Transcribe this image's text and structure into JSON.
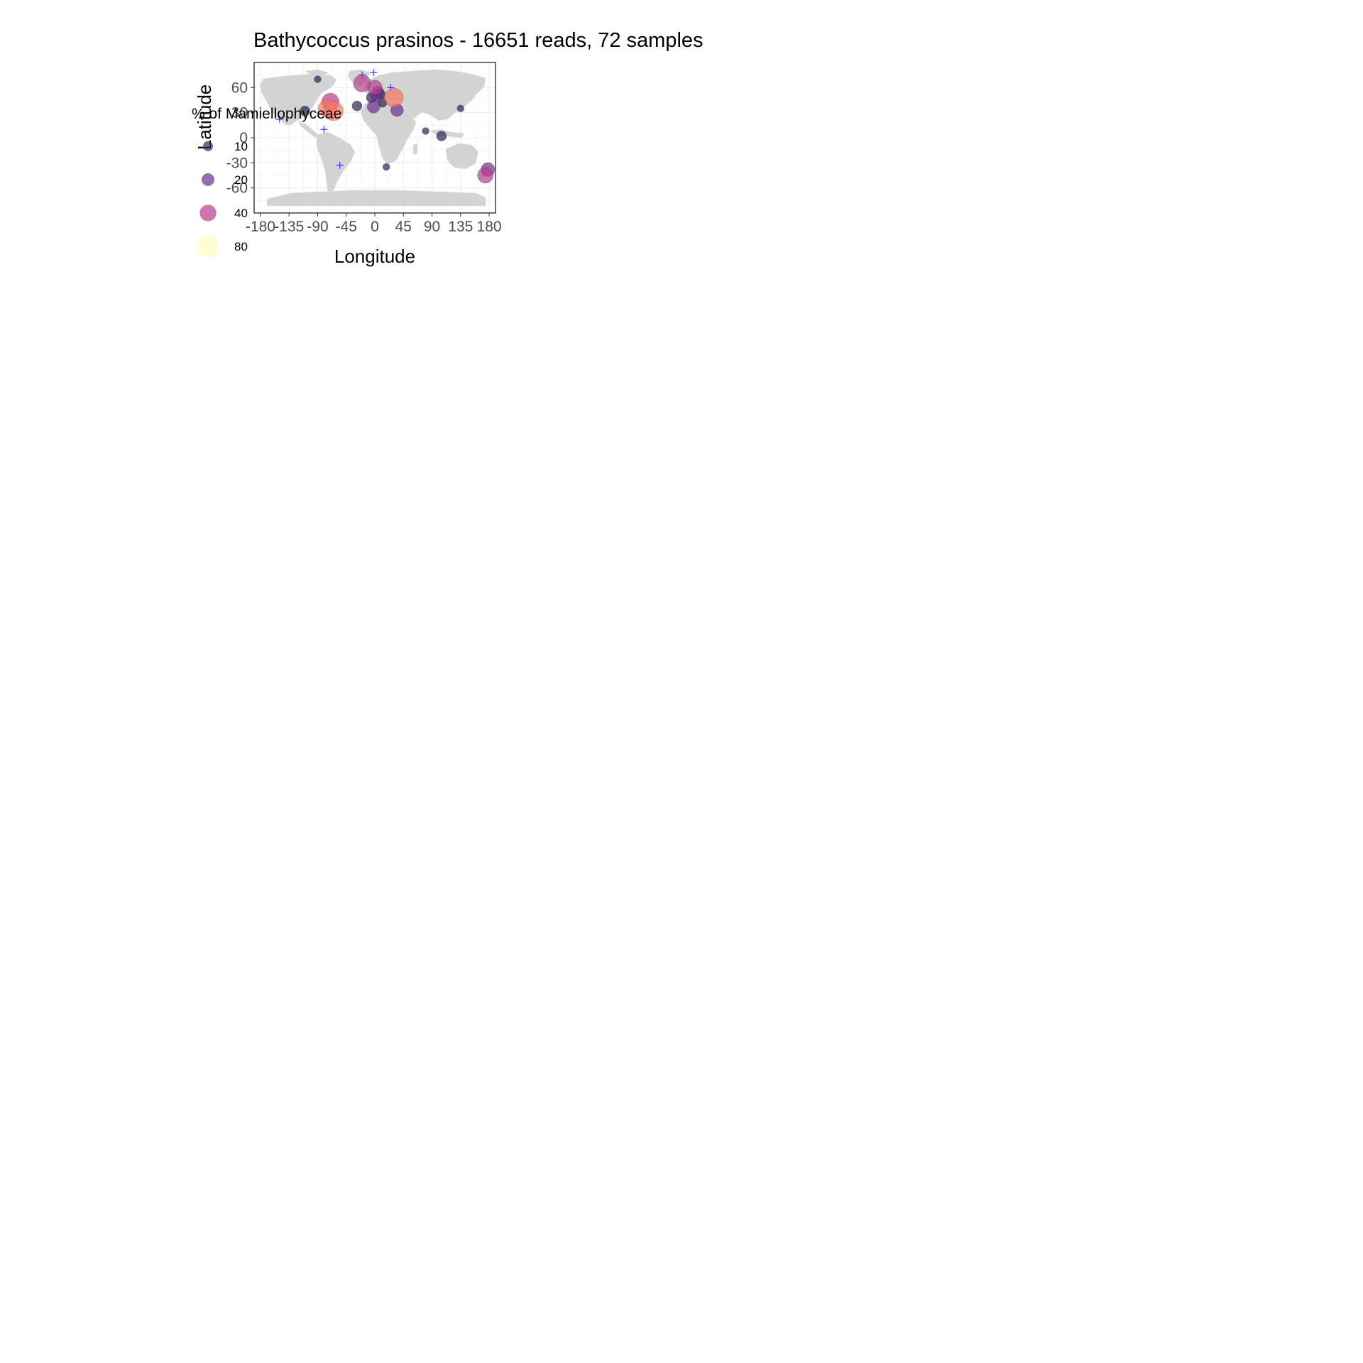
{
  "chart_data": {
    "type": "scatter",
    "title": "Bathycoccus prasinos - 16651 reads, 72 samples",
    "xlabel": "Longitude",
    "ylabel": "Latitude",
    "xlim": [
      -190,
      190
    ],
    "ylim": [
      -90,
      90
    ],
    "xticks": [
      -180,
      -135,
      -90,
      -45,
      0,
      45,
      90,
      135,
      180
    ],
    "yticks": [
      60,
      30,
      0,
      -30,
      -60
    ],
    "grid": true,
    "background_map": "world-land-light-gray",
    "legend": {
      "title": "% of Mamiellophyceae",
      "placement": "left",
      "entries": [
        {
          "label": "10",
          "value": 10,
          "color": "#3b2f5a"
        },
        {
          "label": "20",
          "value": 20,
          "color": "#6a2f8f"
        },
        {
          "label": "40",
          "value": 40,
          "color": "#b73e8c"
        },
        {
          "label": "80",
          "value": 80,
          "color": "#fcfdbf"
        }
      ]
    },
    "absent_marker": {
      "symbol": "+",
      "color": "#1a1aff"
    },
    "points": [
      {
        "lon": -20,
        "lat": 65,
        "pct": 45
      },
      {
        "lon": 0,
        "lat": 60,
        "pct": 30
      },
      {
        "lon": 30,
        "lat": 48,
        "pct": 55
      },
      {
        "lon": -70,
        "lat": 43,
        "pct": 45
      },
      {
        "lon": -65,
        "lat": 32,
        "pct": 60
      },
      {
        "lon": -75,
        "lat": 35,
        "pct": 50
      },
      {
        "lon": 5,
        "lat": 55,
        "pct": 15
      },
      {
        "lon": 3,
        "lat": 50,
        "pct": 15
      },
      {
        "lon": 8,
        "lat": 52,
        "pct": 12
      },
      {
        "lon": -5,
        "lat": 48,
        "pct": 12
      },
      {
        "lon": -2,
        "lat": 37,
        "pct": 20
      },
      {
        "lon": -28,
        "lat": 38,
        "pct": 10
      },
      {
        "lon": 12,
        "lat": 42,
        "pct": 8
      },
      {
        "lon": 35,
        "lat": 33,
        "pct": 20
      },
      {
        "lon": 105,
        "lat": 2,
        "pct": 10
      },
      {
        "lon": 80,
        "lat": 8,
        "pct": 3
      },
      {
        "lon": 135,
        "lat": 35,
        "pct": 3
      },
      {
        "lon": -110,
        "lat": 32,
        "pct": 10
      },
      {
        "lon": -90,
        "lat": 70,
        "pct": 3
      },
      {
        "lon": 18,
        "lat": -35,
        "pct": 3
      },
      {
        "lon": 178,
        "lat": -38,
        "pct": 25
      },
      {
        "lon": 174,
        "lat": -45,
        "pct": 35
      }
    ],
    "absent_points": [
      {
        "lon": -2,
        "lat": 78
      },
      {
        "lon": -150,
        "lat": 22
      },
      {
        "lon": -80,
        "lat": 10
      },
      {
        "lon": -55,
        "lat": -33
      },
      {
        "lon": 25,
        "lat": 60
      },
      {
        "lon": -20,
        "lat": 75
      }
    ]
  }
}
